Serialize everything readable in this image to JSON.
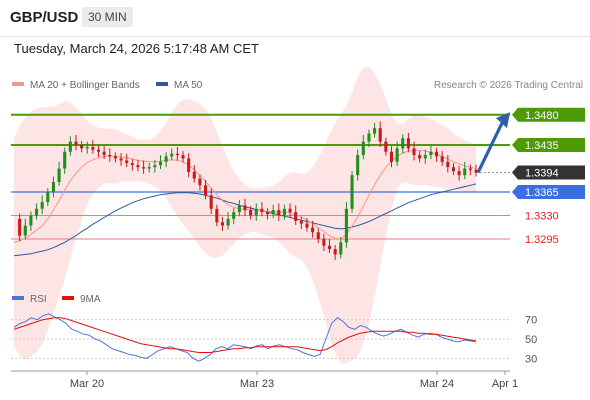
{
  "header": {
    "pair": "GBP/USD",
    "timeframe": "30 MIN"
  },
  "timestamp": "Tuesday, March 24, 2026 5:17:48 AM CET",
  "legend": [
    {
      "label": "MA 20 + Bollinger Bands",
      "color": "#f4968f"
    },
    {
      "label": "MA 50",
      "color": "#2e5b9a"
    }
  ],
  "credit": "Research © 2026 Trading Central",
  "colors": {
    "green": "#4e9a06",
    "blue": "#3d6ee0",
    "red": "#e02020",
    "up": "#1f8f1f",
    "down": "#c91b1b",
    "arrow": "#2f5faa",
    "rsi": "#4f73d9",
    "ma9": "#e01010"
  },
  "chart_data": {
    "type": "line",
    "title": "GBP/USD 30 MIN",
    "ylim": [
      1.3225,
      1.3505
    ],
    "x_ticks": [
      "Mar 20",
      "Mar 23",
      "Mar 24",
      "Apr 1"
    ],
    "levels": [
      {
        "value": 1.348,
        "label": "1.3480",
        "kind": "resistance"
      },
      {
        "value": 1.3435,
        "label": "1.3435",
        "kind": "resistance"
      },
      {
        "value": 1.3394,
        "label": "1.3394",
        "kind": "current"
      },
      {
        "value": 1.3365,
        "label": "1.3365",
        "kind": "pivot"
      },
      {
        "value": 1.333,
        "label": "1.3330",
        "kind": "support"
      },
      {
        "value": 1.3295,
        "label": "1.3295",
        "kind": "support"
      }
    ],
    "series": [
      {
        "name": "GBP/USD close (approx.)",
        "values": [
          1.3325,
          1.33,
          1.3315,
          1.333,
          1.334,
          1.335,
          1.3365,
          1.338,
          1.34,
          1.3425,
          1.344,
          1.3435,
          1.343,
          1.3432,
          1.3428,
          1.3425,
          1.342,
          1.3418,
          1.3415,
          1.3412,
          1.3408,
          1.3405,
          1.3402,
          1.34,
          1.3402,
          1.3405,
          1.341,
          1.3418,
          1.3422,
          1.342,
          1.3415,
          1.3395,
          1.3385,
          1.3375,
          1.336,
          1.334,
          1.332,
          1.3315,
          1.3325,
          1.3335,
          1.3345,
          1.3338,
          1.333,
          1.334,
          1.3335,
          1.3332,
          1.3338,
          1.333,
          1.334,
          1.3335,
          1.3322,
          1.3318,
          1.3312,
          1.3305,
          1.3295,
          1.3285,
          1.328,
          1.3272,
          1.329,
          1.334,
          1.339,
          1.342,
          1.344,
          1.3452,
          1.346,
          1.344,
          1.3425,
          1.341,
          1.343,
          1.3445,
          1.343,
          1.342,
          1.3415,
          1.342,
          1.3425,
          1.3418,
          1.341,
          1.3402,
          1.3396,
          1.339,
          1.34,
          1.3398,
          1.3394
        ]
      },
      {
        "name": "MA 20",
        "values": [
          1.329,
          1.3292,
          1.3296,
          1.3302,
          1.3308,
          1.3315,
          1.3325,
          1.3338,
          1.3352,
          1.3368,
          1.3382,
          1.3393,
          1.3402,
          1.3409,
          1.3413,
          1.3416,
          1.3418,
          1.3419,
          1.3418,
          1.3417,
          1.3416,
          1.3414,
          1.3412,
          1.3411,
          1.341,
          1.341,
          1.3411,
          1.3412,
          1.3413,
          1.3412,
          1.341,
          1.3405,
          1.3398,
          1.339,
          1.3381,
          1.3371,
          1.3361,
          1.3352,
          1.3346,
          1.3342,
          1.334,
          1.3339,
          1.3338,
          1.3338,
          1.3337,
          1.3336,
          1.3336,
          1.3335,
          1.3335,
          1.3334,
          1.3331,
          1.3328,
          1.3323,
          1.3318,
          1.3312,
          1.3306,
          1.33,
          1.3296,
          1.3295,
          1.3302,
          1.3314,
          1.3328,
          1.3344,
          1.336,
          1.3376,
          1.339,
          1.3402,
          1.3411,
          1.3418,
          1.3423,
          1.3426,
          1.3427,
          1.3427,
          1.3426,
          1.3424,
          1.3421,
          1.3418,
          1.3414,
          1.341,
          1.3407,
          1.3404,
          1.3402,
          1.34
        ]
      },
      {
        "name": "MA 50",
        "values": [
          1.327,
          1.3271,
          1.3272,
          1.3273,
          1.3275,
          1.3277,
          1.3279,
          1.3282,
          1.3286,
          1.329,
          1.3295,
          1.33,
          1.3306,
          1.3311,
          1.3317,
          1.3322,
          1.3327,
          1.3332,
          1.3337,
          1.3341,
          1.3345,
          1.3349,
          1.3352,
          1.3355,
          1.3357,
          1.3359,
          1.3361,
          1.3362,
          1.3363,
          1.3364,
          1.3364,
          1.3364,
          1.3363,
          1.3362,
          1.336,
          1.3358,
          1.3356,
          1.3353,
          1.335,
          1.3348,
          1.3345,
          1.3343,
          1.3341,
          1.3339,
          1.3337,
          1.3335,
          1.3333,
          1.3331,
          1.3329,
          1.3327,
          1.3325,
          1.3323,
          1.3321,
          1.3319,
          1.3317,
          1.3315,
          1.3313,
          1.3311,
          1.331,
          1.3311,
          1.3313,
          1.3315,
          1.3318,
          1.3321,
          1.3325,
          1.3329,
          1.3333,
          1.3337,
          1.3341,
          1.3345,
          1.3349,
          1.3352,
          1.3355,
          1.3358,
          1.3361,
          1.3363,
          1.3365,
          1.3367,
          1.3369,
          1.3371,
          1.3373,
          1.3375,
          1.3377
        ]
      }
    ],
    "rsi": {
      "legend": [
        {
          "label": "RSI",
          "color": "#4f73d9"
        },
        {
          "label": "9MA",
          "color": "#e01010"
        }
      ],
      "levels": [
        70,
        50,
        30
      ],
      "ylim": [
        20,
        80
      ],
      "rsi_values": [
        62,
        66,
        68,
        72,
        70,
        74,
        76,
        73,
        70,
        66,
        60,
        58,
        55,
        54,
        50,
        48,
        44,
        40,
        38,
        36,
        34,
        33,
        31,
        30,
        34,
        38,
        40,
        42,
        40,
        38,
        36,
        30,
        27,
        30,
        34,
        40,
        42,
        40,
        44,
        43,
        42,
        40,
        43,
        44,
        40,
        43,
        44,
        42,
        40,
        39,
        36,
        34,
        32,
        34,
        50,
        66,
        72,
        68,
        62,
        60,
        64,
        62,
        58,
        55,
        53,
        55,
        58,
        60,
        57,
        54,
        52,
        55,
        56,
        55,
        52,
        50,
        48,
        47,
        49,
        48,
        47
      ],
      "ma9_values": [
        60,
        62,
        64,
        66,
        68,
        70,
        71,
        72,
        72,
        71,
        69,
        67,
        65,
        63,
        61,
        59,
        57,
        55,
        53,
        51,
        49,
        47,
        45,
        44,
        43,
        42,
        41,
        40,
        40,
        39,
        38,
        37,
        36,
        36,
        36,
        37,
        38,
        39,
        40,
        40,
        41,
        41,
        42,
        42,
        42,
        42,
        42,
        42,
        42,
        42,
        41,
        40,
        39,
        38,
        39,
        42,
        46,
        49,
        52,
        54,
        56,
        57,
        58,
        58,
        58,
        58,
        58,
        58,
        57,
        57,
        56,
        56,
        55,
        55,
        54,
        53,
        52,
        51,
        50,
        49,
        48
      ]
    }
  }
}
